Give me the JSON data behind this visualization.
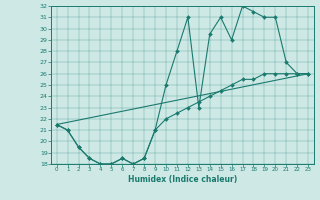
{
  "xlabel": "Humidex (Indice chaleur)",
  "ylabel": "",
  "xlim": [
    -0.5,
    23.5
  ],
  "ylim": [
    18,
    32
  ],
  "yticks": [
    18,
    19,
    20,
    21,
    22,
    23,
    24,
    25,
    26,
    27,
    28,
    29,
    30,
    31,
    32
  ],
  "xticks": [
    0,
    1,
    2,
    3,
    4,
    5,
    6,
    7,
    8,
    9,
    10,
    11,
    12,
    13,
    14,
    15,
    16,
    17,
    18,
    19,
    20,
    21,
    22,
    23
  ],
  "line_color": "#1a7a6e",
  "background_color": "#cde8e5",
  "line1_x": [
    0,
    1,
    2,
    3,
    4,
    5,
    6,
    7,
    8,
    9,
    10,
    11,
    12,
    13,
    14,
    15,
    16,
    17,
    18,
    19,
    20,
    21,
    22,
    23
  ],
  "line1_y": [
    21.5,
    21,
    19.5,
    18.5,
    18,
    18,
    18.5,
    18,
    18.5,
    21,
    25,
    28,
    31,
    23,
    29.5,
    31,
    29,
    32,
    31.5,
    31,
    31,
    27,
    26,
    26
  ],
  "line2_x": [
    0,
    1,
    2,
    3,
    4,
    5,
    6,
    7,
    8,
    9,
    10,
    11,
    12,
    13,
    14,
    15,
    16,
    17,
    18,
    19,
    20,
    21,
    22,
    23
  ],
  "line2_y": [
    21.5,
    21,
    19.5,
    18.5,
    18,
    18,
    18.5,
    18,
    18.5,
    21,
    22,
    22.5,
    23,
    23.5,
    24,
    24.5,
    25,
    25.5,
    25.5,
    26,
    26,
    26,
    26,
    26
  ],
  "line3_x": [
    0,
    23
  ],
  "line3_y": [
    21.5,
    26
  ]
}
